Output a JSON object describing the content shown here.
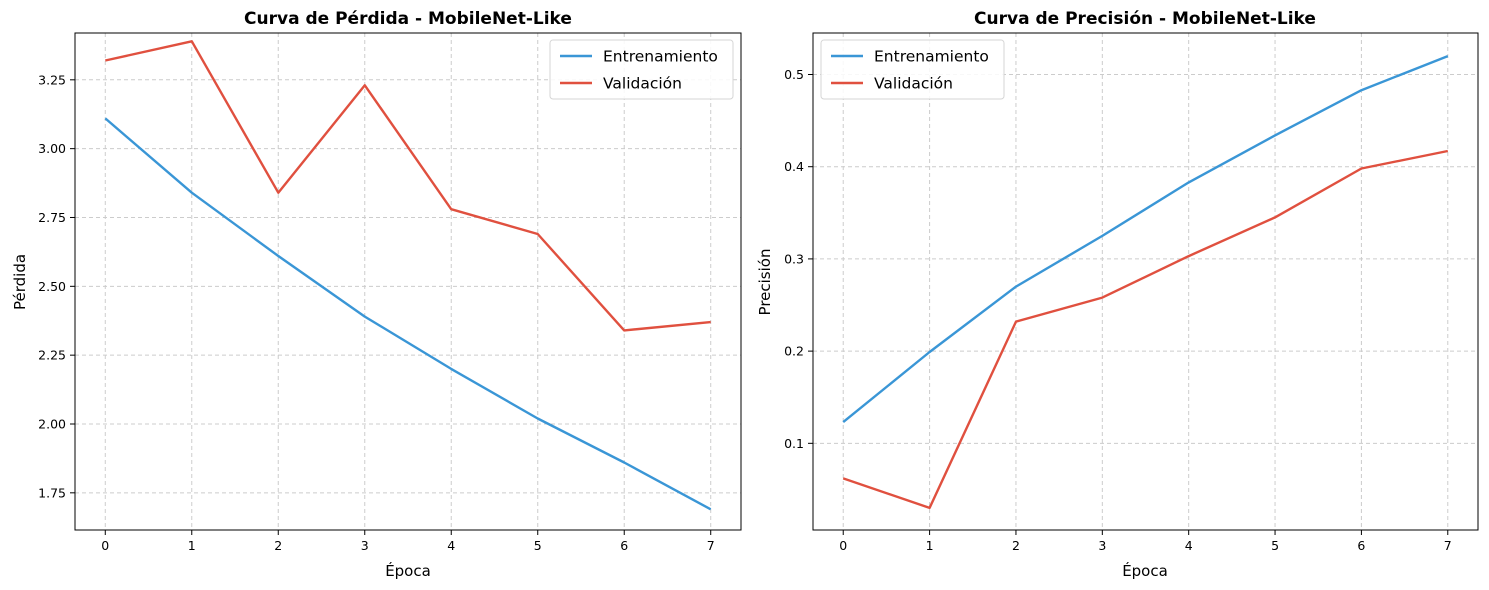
{
  "chart_data": [
    {
      "type": "line",
      "title": "Curva de Pérdida - MobileNet-Like",
      "xlabel": "Época",
      "ylabel": "Pérdida",
      "x": [
        0,
        1,
        2,
        3,
        4,
        5,
        6,
        7
      ],
      "xlim": [
        -0.35,
        7.35
      ],
      "ylim": [
        1.615,
        3.42
      ],
      "yticks": [
        1.75,
        2.0,
        2.25,
        2.5,
        2.75,
        3.0,
        3.25
      ],
      "ytick_labels": [
        "1.75",
        "2.00",
        "2.25",
        "2.50",
        "2.75",
        "3.00",
        "3.25"
      ],
      "xtick_labels": [
        "0",
        "1",
        "2",
        "3",
        "4",
        "5",
        "6",
        "7"
      ],
      "grid": true,
      "legend_position": "top-right",
      "series": [
        {
          "name": "Entrenamiento",
          "color": "#3a96d6",
          "values": [
            3.11,
            2.84,
            2.61,
            2.39,
            2.2,
            2.02,
            1.86,
            1.69
          ]
        },
        {
          "name": "Validación",
          "color": "#e0503f",
          "values": [
            3.32,
            3.39,
            2.84,
            3.23,
            2.78,
            2.69,
            2.34,
            2.37
          ]
        }
      ]
    },
    {
      "type": "line",
      "title": "Curva de Precisión - MobileNet-Like",
      "xlabel": "Época",
      "ylabel": "Precisión",
      "x": [
        0,
        1,
        2,
        3,
        4,
        5,
        6,
        7
      ],
      "xlim": [
        -0.35,
        7.35
      ],
      "ylim": [
        0.006,
        0.545
      ],
      "yticks": [
        0.1,
        0.2,
        0.3,
        0.4,
        0.5
      ],
      "ytick_labels": [
        "0.1",
        "0.2",
        "0.3",
        "0.4",
        "0.5"
      ],
      "xtick_labels": [
        "0",
        "1",
        "2",
        "3",
        "4",
        "5",
        "6",
        "7"
      ],
      "grid": true,
      "legend_position": "top-left",
      "series": [
        {
          "name": "Entrenamiento",
          "color": "#3a96d6",
          "values": [
            0.123,
            0.199,
            0.27,
            0.325,
            0.383,
            0.434,
            0.483,
            0.52
          ]
        },
        {
          "name": "Validación",
          "color": "#e0503f",
          "values": [
            0.062,
            0.03,
            0.232,
            0.258,
            0.303,
            0.345,
            0.398,
            0.417
          ]
        }
      ]
    }
  ]
}
